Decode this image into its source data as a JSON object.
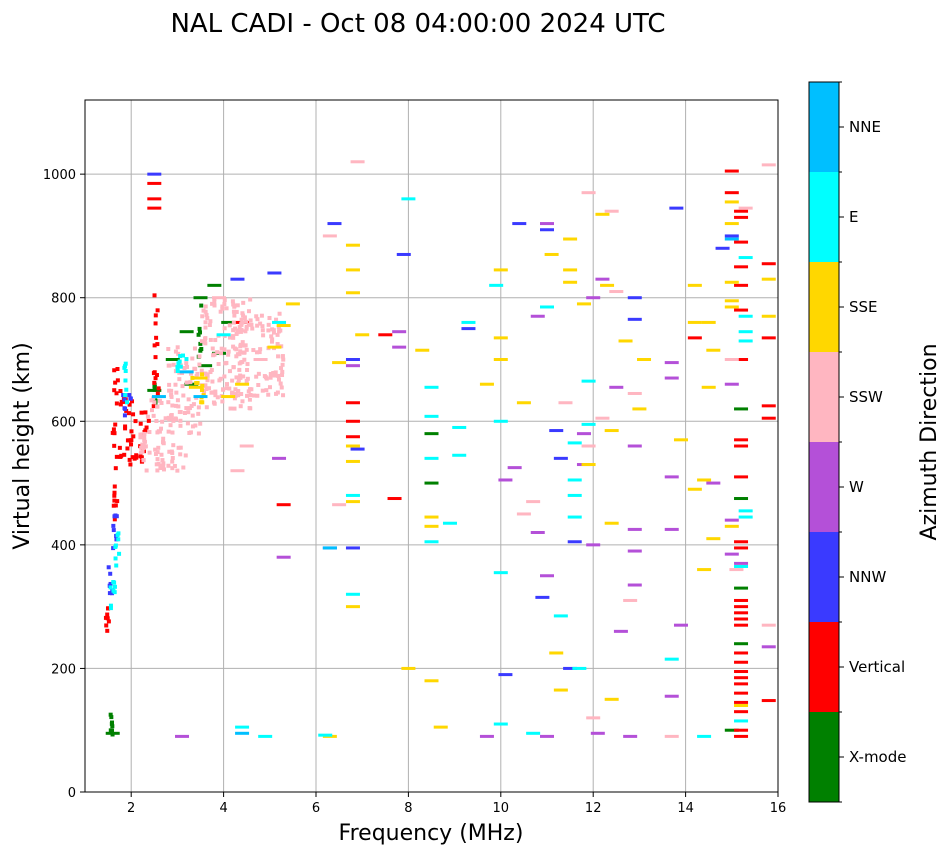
{
  "chart_data": {
    "type": "scatter",
    "title": "NAL CADI - Oct 08 04:00:00 2024 UTC",
    "xlabel": "Frequency (MHz)",
    "ylabel": "Virtual height (km)",
    "xlim": [
      1,
      16
    ],
    "ylim": [
      0,
      1120
    ],
    "xticks": [
      2,
      4,
      6,
      8,
      10,
      12,
      14,
      16
    ],
    "yticks": [
      0,
      200,
      400,
      600,
      800,
      1000
    ],
    "grid": true,
    "colorbar": {
      "title": "Azimuth Direction",
      "categories": [
        "X-mode",
        "Vertical",
        "NNW",
        "W",
        "SSW",
        "SSE",
        "E",
        "NNE"
      ],
      "colors": [
        "#008000",
        "#ff0000",
        "#3a3aff",
        "#b450d8",
        "#ffb6c1",
        "#ffd700",
        "#00ffff",
        "#00bfff"
      ]
    },
    "series": [
      {
        "name": "X-mode",
        "points": [
          [
            1.6,
            95
          ],
          [
            3.3,
            660
          ],
          [
            3.6,
            690
          ],
          [
            3.9,
            710
          ],
          [
            2.9,
            700
          ],
          [
            3.2,
            745
          ],
          [
            3.5,
            800
          ],
          [
            8.5,
            500
          ],
          [
            8.5,
            580
          ],
          [
            15.2,
            475
          ],
          [
            15.2,
            620
          ],
          [
            15.2,
            240
          ],
          [
            15.2,
            330
          ],
          [
            15.0,
            100
          ],
          [
            3.8,
            820
          ],
          [
            4.1,
            760
          ],
          [
            2.5,
            650
          ]
        ],
        "runs": [
          [
            1.55,
            1.62,
            90,
            130
          ],
          [
            3.45,
            3.52,
            700,
            790
          ],
          [
            2.5,
            2.55,
            620,
            660
          ]
        ]
      },
      {
        "name": "Vertical",
        "points": [
          [
            2.5,
            945
          ],
          [
            2.5,
            960
          ],
          [
            2.5,
            985
          ],
          [
            6.8,
            630
          ],
          [
            6.8,
            575
          ],
          [
            5.3,
            465
          ],
          [
            7.7,
            475
          ],
          [
            15.2,
            940
          ],
          [
            15.2,
            930
          ],
          [
            15.2,
            890
          ],
          [
            15.2,
            850
          ],
          [
            15.2,
            820
          ],
          [
            15.0,
            970
          ],
          [
            15.0,
            1005
          ],
          [
            15.2,
            780
          ],
          [
            15.2,
            700
          ],
          [
            15.2,
            570
          ],
          [
            15.2,
            560
          ],
          [
            15.2,
            510
          ],
          [
            15.2,
            405
          ],
          [
            15.2,
            395
          ],
          [
            15.2,
            310
          ],
          [
            15.2,
            300
          ],
          [
            15.2,
            290
          ],
          [
            15.2,
            280
          ],
          [
            15.2,
            270
          ],
          [
            15.2,
            225
          ],
          [
            15.2,
            210
          ],
          [
            15.2,
            195
          ],
          [
            15.2,
            185
          ],
          [
            15.2,
            175
          ],
          [
            15.2,
            160
          ],
          [
            15.2,
            145
          ],
          [
            15.2,
            130
          ],
          [
            15.2,
            100
          ],
          [
            15.2,
            90
          ],
          [
            15.8,
            855
          ],
          [
            15.8,
            735
          ],
          [
            15.8,
            625
          ],
          [
            15.8,
            605
          ],
          [
            15.8,
            148
          ],
          [
            4.4,
            760
          ],
          [
            14.2,
            735
          ],
          [
            7.5,
            740
          ],
          [
            6.8,
            600
          ]
        ],
        "runs": [
          [
            1.45,
            1.52,
            255,
            320
          ],
          [
            1.6,
            1.72,
            520,
            690
          ],
          [
            1.75,
            1.95,
            540,
            650
          ],
          [
            1.95,
            2.15,
            530,
            640
          ],
          [
            2.2,
            2.4,
            560,
            620
          ],
          [
            2.4,
            2.6,
            620,
            680
          ],
          [
            2.1,
            2.3,
            530,
            560
          ],
          [
            1.62,
            1.7,
            440,
            500
          ],
          [
            2.5,
            2.58,
            700,
            840
          ]
        ]
      },
      {
        "name": "NNW",
        "points": [
          [
            2.5,
            1000
          ],
          [
            6.9,
            555
          ],
          [
            6.3,
            395
          ],
          [
            6.8,
            395
          ],
          [
            6.8,
            700
          ],
          [
            6.4,
            920
          ],
          [
            7.9,
            870
          ],
          [
            9.3,
            750
          ],
          [
            10.4,
            920
          ],
          [
            11.0,
            910
          ],
          [
            10.9,
            315
          ],
          [
            11.2,
            585
          ],
          [
            11.3,
            540
          ],
          [
            11.6,
            405
          ],
          [
            11.5,
            200
          ],
          [
            12.9,
            800
          ],
          [
            12.9,
            765
          ],
          [
            13.8,
            945
          ],
          [
            14.8,
            880
          ],
          [
            10.1,
            190
          ],
          [
            5.1,
            840
          ],
          [
            4.3,
            830
          ],
          [
            15.0,
            900
          ]
        ],
        "runs": [
          [
            1.5,
            1.6,
            320,
            380
          ],
          [
            1.6,
            1.7,
            380,
            450
          ],
          [
            1.8,
            2.0,
            600,
            660
          ]
        ]
      },
      {
        "name": "W",
        "points": [
          [
            6.8,
            690
          ],
          [
            7.8,
            745
          ],
          [
            7.8,
            720
          ],
          [
            11.8,
            580
          ],
          [
            12.5,
            655
          ],
          [
            12.9,
            560
          ],
          [
            12.9,
            425
          ],
          [
            12.9,
            390
          ],
          [
            12.9,
            335
          ],
          [
            12.6,
            260
          ],
          [
            13.7,
            695
          ],
          [
            13.7,
            670
          ],
          [
            13.7,
            510
          ],
          [
            13.7,
            425
          ],
          [
            13.9,
            270
          ],
          [
            13.7,
            155
          ],
          [
            14.6,
            500
          ],
          [
            15.0,
            660
          ],
          [
            15.0,
            440
          ],
          [
            15.0,
            385
          ],
          [
            15.2,
            370
          ],
          [
            15.8,
            235
          ],
          [
            11.0,
            920
          ],
          [
            10.8,
            770
          ],
          [
            11.8,
            530
          ],
          [
            12.0,
            400
          ],
          [
            12.1,
            95
          ],
          [
            10.1,
            505
          ],
          [
            10.3,
            525
          ],
          [
            10.8,
            420
          ],
          [
            11.0,
            350
          ],
          [
            12.2,
            830
          ],
          [
            12.0,
            800
          ],
          [
            3.1,
            90
          ],
          [
            5.3,
            380
          ],
          [
            5.2,
            540
          ],
          [
            12.8,
            90
          ],
          [
            11.0,
            90
          ],
          [
            9.7,
            90
          ]
        ],
        "runs": []
      },
      {
        "name": "SSW",
        "points": [
          [
            4.8,
            700
          ],
          [
            4.5,
            560
          ],
          [
            4.3,
            520
          ],
          [
            12.4,
            940
          ],
          [
            11.9,
            970
          ],
          [
            15.3,
            945
          ],
          [
            15.0,
            700
          ],
          [
            12.5,
            810
          ],
          [
            12.9,
            645
          ],
          [
            12.2,
            605
          ],
          [
            11.4,
            630
          ],
          [
            11.9,
            560
          ],
          [
            12.8,
            310
          ],
          [
            15.1,
            360
          ],
          [
            15.8,
            270
          ],
          [
            15.8,
            1015
          ],
          [
            10.5,
            450
          ],
          [
            10.7,
            470
          ],
          [
            12.0,
            120
          ],
          [
            3.9,
            800
          ],
          [
            6.3,
            900
          ],
          [
            6.5,
            465
          ],
          [
            6.9,
            1020
          ],
          [
            13.7,
            90
          ]
        ],
        "runs": [
          [
            2.2,
            3.0,
            520,
            640
          ],
          [
            2.8,
            3.5,
            580,
            720
          ],
          [
            3.5,
            4.6,
            620,
            800
          ],
          [
            4.2,
            5.3,
            640,
            780
          ],
          [
            2.6,
            3.2,
            520,
            560
          ]
        ]
      },
      {
        "name": "SSE",
        "points": [
          [
            6.8,
            885
          ],
          [
            6.8,
            845
          ],
          [
            6.8,
            808
          ],
          [
            6.8,
            560
          ],
          [
            6.8,
            535
          ],
          [
            6.8,
            470
          ],
          [
            6.8,
            300
          ],
          [
            6.5,
            695
          ],
          [
            8.3,
            715
          ],
          [
            8.5,
            430
          ],
          [
            8.5,
            445
          ],
          [
            9.7,
            660
          ],
          [
            10.0,
            735
          ],
          [
            10.0,
            700
          ],
          [
            10.5,
            630
          ],
          [
            11.1,
            870
          ],
          [
            11.5,
            895
          ],
          [
            11.5,
            845
          ],
          [
            11.5,
            825
          ],
          [
            11.8,
            790
          ],
          [
            12.2,
            935
          ],
          [
            12.3,
            820
          ],
          [
            12.7,
            730
          ],
          [
            13.1,
            700
          ],
          [
            13.0,
            620
          ],
          [
            12.4,
            585
          ],
          [
            11.9,
            530
          ],
          [
            12.4,
            435
          ],
          [
            14.2,
            820
          ],
          [
            14.2,
            760
          ],
          [
            14.5,
            760
          ],
          [
            14.6,
            715
          ],
          [
            14.5,
            655
          ],
          [
            14.2,
            490
          ],
          [
            14.4,
            505
          ],
          [
            14.6,
            410
          ],
          [
            14.4,
            360
          ],
          [
            15.0,
            955
          ],
          [
            15.0,
            920
          ],
          [
            15.0,
            825
          ],
          [
            15.0,
            785
          ],
          [
            15.0,
            430
          ],
          [
            15.8,
            830
          ],
          [
            15.8,
            770
          ],
          [
            15.2,
            140
          ],
          [
            11.2,
            225
          ],
          [
            11.3,
            165
          ],
          [
            12.4,
            150
          ],
          [
            13.9,
            570
          ],
          [
            3.4,
            655
          ],
          [
            3.5,
            670
          ],
          [
            4.1,
            640
          ],
          [
            4.4,
            660
          ],
          [
            5.1,
            720
          ],
          [
            5.3,
            755
          ],
          [
            8.0,
            200
          ],
          [
            8.5,
            180
          ],
          [
            8.7,
            105
          ],
          [
            10.0,
            845
          ],
          [
            15.0,
            795
          ],
          [
            6.3,
            90
          ],
          [
            7.0,
            740
          ],
          [
            5.5,
            790
          ]
        ],
        "runs": [
          [
            3.3,
            3.6,
            630,
            680
          ]
        ]
      },
      {
        "name": "E",
        "points": [
          [
            8.5,
            655
          ],
          [
            8.5,
            608
          ],
          [
            8.5,
            540
          ],
          [
            8.5,
            405
          ],
          [
            8.9,
            435
          ],
          [
            9.1,
            590
          ],
          [
            9.1,
            545
          ],
          [
            9.3,
            760
          ],
          [
            10.0,
            600
          ],
          [
            10.0,
            355
          ],
          [
            10.0,
            110
          ],
          [
            11.0,
            785
          ],
          [
            11.3,
            285
          ],
          [
            11.6,
            565
          ],
          [
            11.6,
            505
          ],
          [
            11.6,
            480
          ],
          [
            11.6,
            445
          ],
          [
            11.9,
            665
          ],
          [
            11.9,
            595
          ],
          [
            10.7,
            95
          ],
          [
            13.7,
            215
          ],
          [
            14.4,
            90
          ],
          [
            15.3,
            865
          ],
          [
            15.3,
            770
          ],
          [
            15.3,
            745
          ],
          [
            15.3,
            730
          ],
          [
            15.3,
            455
          ],
          [
            15.3,
            445
          ],
          [
            15.2,
            365
          ],
          [
            15.2,
            115
          ],
          [
            9.9,
            820
          ],
          [
            8.0,
            960
          ],
          [
            4.4,
            105
          ],
          [
            4.9,
            90
          ],
          [
            6.2,
            92
          ],
          [
            6.8,
            320
          ],
          [
            6.8,
            480
          ],
          [
            11.7,
            200
          ],
          [
            5.2,
            760
          ],
          [
            4.0,
            740
          ]
        ],
        "runs": [
          [
            1.55,
            1.65,
            280,
            360
          ],
          [
            1.65,
            1.75,
            360,
            420
          ],
          [
            1.85,
            1.95,
            620,
            700
          ],
          [
            3.0,
            3.2,
            680,
            720
          ]
        ]
      },
      {
        "name": "NNE",
        "points": [
          [
            4.4,
            95
          ],
          [
            3.2,
            680
          ],
          [
            6.3,
            395
          ],
          [
            15.0,
            895
          ],
          [
            2.6,
            640
          ],
          [
            3.5,
            640
          ]
        ],
        "runs": []
      }
    ]
  }
}
